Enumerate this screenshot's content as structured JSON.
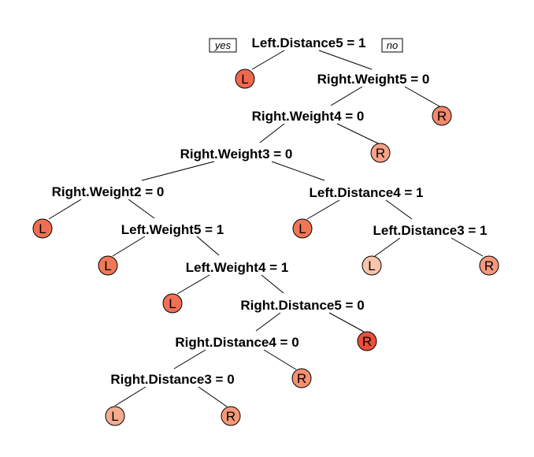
{
  "tree": {
    "yes_label": "yes",
    "no_label": "no",
    "splits": [
      "Left.Distance5 = 1",
      "Right.Weight5 = 0",
      "Right.Weight4 = 0",
      "Right.Weight3 = 0",
      "Right.Weight2 = 0",
      "Left.Distance4 = 1",
      "Left.Weight5 = 1",
      "Left.Distance3 = 1",
      "Left.Weight4 = 1",
      "Right.Distance5 = 0",
      "Right.Distance4 = 0",
      "Right.Distance3 = 0"
    ],
    "leaves": [
      {
        "label": "L",
        "color": "#ee6a4e"
      },
      {
        "label": "R",
        "color": "#f5896c"
      },
      {
        "label": "R",
        "color": "#f7a286"
      },
      {
        "label": "L",
        "color": "#f06f52"
      },
      {
        "label": "L",
        "color": "#f07656"
      },
      {
        "label": "L",
        "color": "#f07858"
      },
      {
        "label": "L",
        "color": "#f9c4ac"
      },
      {
        "label": "R",
        "color": "#f6997c"
      },
      {
        "label": "L",
        "color": "#f07054"
      },
      {
        "label": "R",
        "color": "#ec4f3a"
      },
      {
        "label": "R",
        "color": "#f69072"
      },
      {
        "label": "L",
        "color": "#f7ab8e"
      },
      {
        "label": "R",
        "color": "#f69878"
      }
    ]
  }
}
